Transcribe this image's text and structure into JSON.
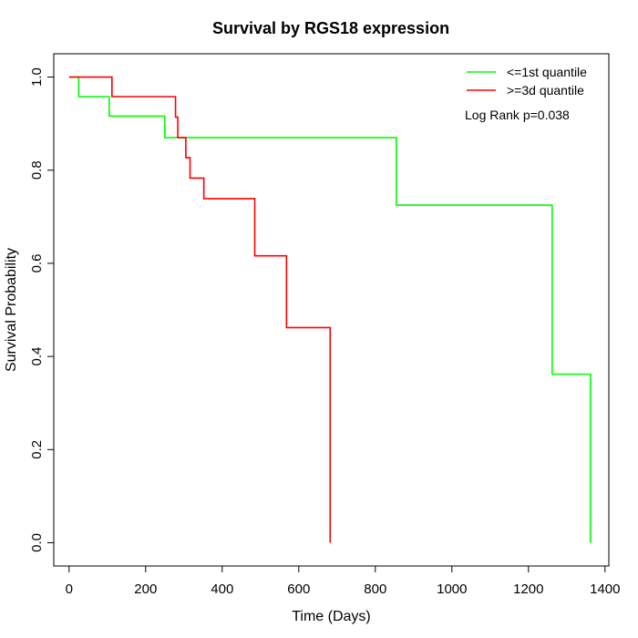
{
  "chart_data": {
    "type": "line",
    "title": "Survival by RGS18 expression",
    "xlabel": "Time (Days)",
    "ylabel": "Survival Probability",
    "xlim": [
      -40,
      1410
    ],
    "ylim": [
      -0.05,
      1.05
    ],
    "xticks": [
      0,
      200,
      400,
      600,
      800,
      1000,
      1200,
      1400
    ],
    "yticks": [
      0.0,
      0.2,
      0.4,
      0.6,
      0.8,
      1.0
    ],
    "xtick_labels": [
      "0",
      "200",
      "400",
      "600",
      "800",
      "1000",
      "1200",
      "1400"
    ],
    "ytick_labels": [
      "0.0",
      "0.2",
      "0.4",
      "0.6",
      "0.8",
      "1.0"
    ],
    "grid": false,
    "legend_position": "top-right",
    "annotation": "Log Rank p=0.038",
    "series": [
      {
        "name": "<=1st quantile",
        "color": "#00ff00",
        "steps": [
          [
            0,
            1.0
          ],
          [
            25,
            0.958
          ],
          [
            105,
            0.916
          ],
          [
            250,
            0.87
          ],
          [
            855,
            0.725
          ],
          [
            1262,
            0.362
          ],
          [
            1362,
            0.0
          ]
        ]
      },
      {
        "name": ">=3d quantile",
        "color": "#ff0000",
        "steps": [
          [
            0,
            1.0
          ],
          [
            112,
            0.958
          ],
          [
            278,
            0.914
          ],
          [
            284,
            0.87
          ],
          [
            305,
            0.827
          ],
          [
            316,
            0.783
          ],
          [
            352,
            0.739
          ],
          [
            485,
            0.616
          ],
          [
            568,
            0.462
          ],
          [
            682,
            0.0
          ]
        ]
      }
    ]
  }
}
